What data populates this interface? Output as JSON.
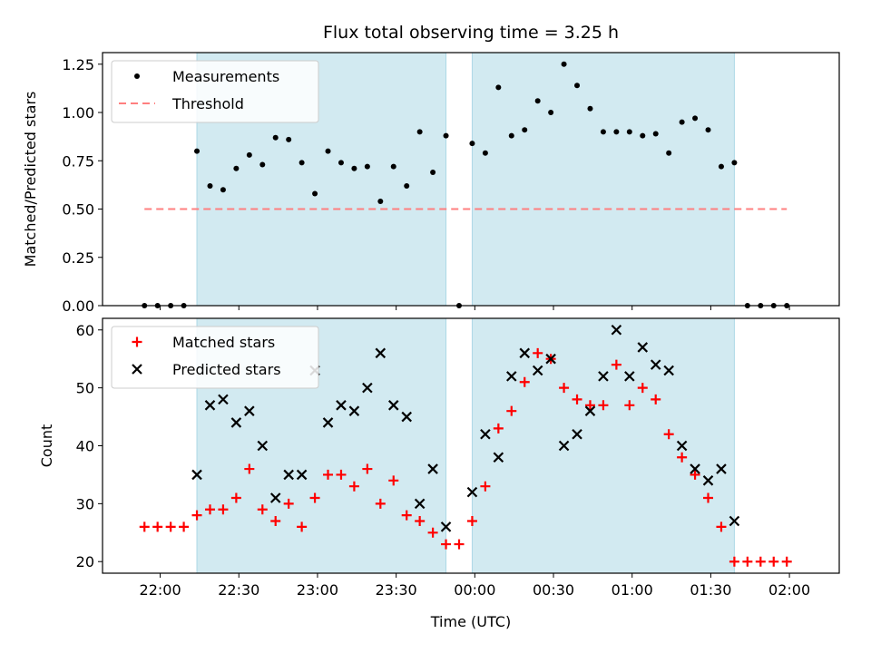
{
  "chart_data": {
    "title": "Flux total observing time = 3.25 h",
    "xlabel": "Time (UTC)",
    "x_unit": "hours UTC (values past 24 are after midnight)",
    "x_range": [
      21.6333,
      26.3167
    ],
    "x_ticks": [
      {
        "value": 22.0,
        "label": "22:00"
      },
      {
        "value": 22.5,
        "label": "22:30"
      },
      {
        "value": 23.0,
        "label": "23:00"
      },
      {
        "value": 23.5,
        "label": "23:30"
      },
      {
        "value": 24.0,
        "label": "00:00"
      },
      {
        "value": 24.5,
        "label": "00:30"
      },
      {
        "value": 25.0,
        "label": "01:00"
      },
      {
        "value": 25.5,
        "label": "01:30"
      },
      {
        "value": 26.0,
        "label": "02:00"
      }
    ],
    "observing_windows": [
      [
        22.2333,
        23.8167
      ],
      [
        23.9833,
        25.65
      ]
    ],
    "shade_color": "#add8e6",
    "panels": [
      {
        "type": "scatter",
        "ylabel": "Matched/Predicted stars",
        "ylim": [
          0,
          1.31
        ],
        "y_ticks": [
          "0.00",
          "0.25",
          "0.50",
          "0.75",
          "1.00",
          "1.25"
        ],
        "legend_position": "top-left",
        "series": [
          {
            "name": "Measurements",
            "marker": "dot",
            "color": "#000000",
            "x": [
              21.9,
              21.9833,
              22.0667,
              22.15,
              22.2333,
              22.3167,
              22.4,
              22.4833,
              22.5667,
              22.65,
              22.7333,
              22.8167,
              22.9,
              22.9833,
              23.0667,
              23.15,
              23.2333,
              23.3167,
              23.4,
              23.4833,
              23.5667,
              23.65,
              23.7333,
              23.8167,
              23.9,
              23.9833,
              24.0667,
              24.15,
              24.2333,
              24.3167,
              24.4,
              24.4833,
              24.5667,
              24.65,
              24.7333,
              24.8167,
              24.9,
              24.9833,
              25.0667,
              25.15,
              25.2333,
              25.3167,
              25.4,
              25.4833,
              25.5667,
              25.65,
              25.7333,
              25.8167,
              25.9,
              25.9833
            ],
            "y": [
              0.0,
              0.0,
              0.0,
              0.0,
              0.8,
              0.62,
              0.6,
              0.71,
              0.78,
              0.73,
              0.87,
              0.86,
              0.74,
              0.58,
              0.8,
              0.74,
              0.71,
              0.72,
              0.54,
              0.72,
              0.62,
              0.9,
              0.69,
              0.88,
              0.0,
              0.84,
              0.79,
              1.13,
              0.88,
              0.91,
              1.06,
              1.0,
              1.25,
              1.14,
              1.02,
              0.9,
              0.9,
              0.9,
              0.88,
              0.89,
              0.79,
              0.95,
              0.97,
              0.91,
              0.72,
              0.74,
              0.0,
              0.0,
              0.0,
              0.0
            ]
          },
          {
            "name": "Threshold",
            "marker": "dashed-line",
            "color": "#ff7f7f",
            "x": [
              21.9,
              25.9833
            ],
            "y": [
              0.5,
              0.5
            ]
          }
        ]
      },
      {
        "type": "scatter",
        "ylabel": "Count",
        "ylim": [
          18,
          62
        ],
        "y_ticks": [
          "20",
          "30",
          "40",
          "50",
          "60"
        ],
        "legend_position": "top-left",
        "series": [
          {
            "name": "Matched stars",
            "marker": "plus",
            "color": "#ff0000",
            "x": [
              21.9,
              21.9833,
              22.0667,
              22.15,
              22.2333,
              22.3167,
              22.4,
              22.4833,
              22.5667,
              22.65,
              22.7333,
              22.8167,
              22.9,
              22.9833,
              23.0667,
              23.15,
              23.2333,
              23.3167,
              23.4,
              23.4833,
              23.5667,
              23.65,
              23.7333,
              23.8167,
              23.9,
              23.9833,
              24.0667,
              24.15,
              24.2333,
              24.3167,
              24.4,
              24.4833,
              24.5667,
              24.65,
              24.7333,
              24.8167,
              24.9,
              24.9833,
              25.0667,
              25.15,
              25.2333,
              25.3167,
              25.4,
              25.4833,
              25.5667,
              25.65,
              25.7333,
              25.8167,
              25.9,
              25.9833
            ],
            "y": [
              26,
              26,
              26,
              26,
              28,
              29,
              29,
              31,
              36,
              29,
              27,
              30,
              26,
              31,
              35,
              35,
              33,
              36,
              30,
              34,
              28,
              27,
              25,
              23,
              23,
              27,
              33,
              43,
              46,
              51,
              56,
              55,
              50,
              48,
              47,
              47,
              54,
              47,
              50,
              48,
              42,
              38,
              35,
              31,
              26,
              20,
              20,
              20,
              20,
              20
            ]
          },
          {
            "name": "Predicted stars",
            "marker": "x",
            "color": "#000000",
            "x": [
              22.2333,
              22.3167,
              22.4,
              22.4833,
              22.5667,
              22.65,
              22.7333,
              22.8167,
              22.9,
              22.9833,
              23.0667,
              23.15,
              23.2333,
              23.3167,
              23.4,
              23.4833,
              23.5667,
              23.65,
              23.7333,
              23.8167,
              23.9833,
              24.0667,
              24.15,
              24.2333,
              24.3167,
              24.4,
              24.4833,
              24.5667,
              24.65,
              24.7333,
              24.8167,
              24.9,
              24.9833,
              25.0667,
              25.15,
              25.2333,
              25.3167,
              25.4,
              25.4833,
              25.5667,
              25.65
            ],
            "y": [
              35,
              47,
              48,
              44,
              46,
              40,
              31,
              35,
              35,
              53,
              44,
              47,
              46,
              50,
              56,
              47,
              45,
              30,
              36,
              26,
              32,
              42,
              38,
              52,
              56,
              53,
              55,
              40,
              42,
              46,
              52,
              60,
              52,
              57,
              54,
              53,
              40,
              36,
              34,
              36,
              27
            ]
          }
        ]
      }
    ]
  }
}
